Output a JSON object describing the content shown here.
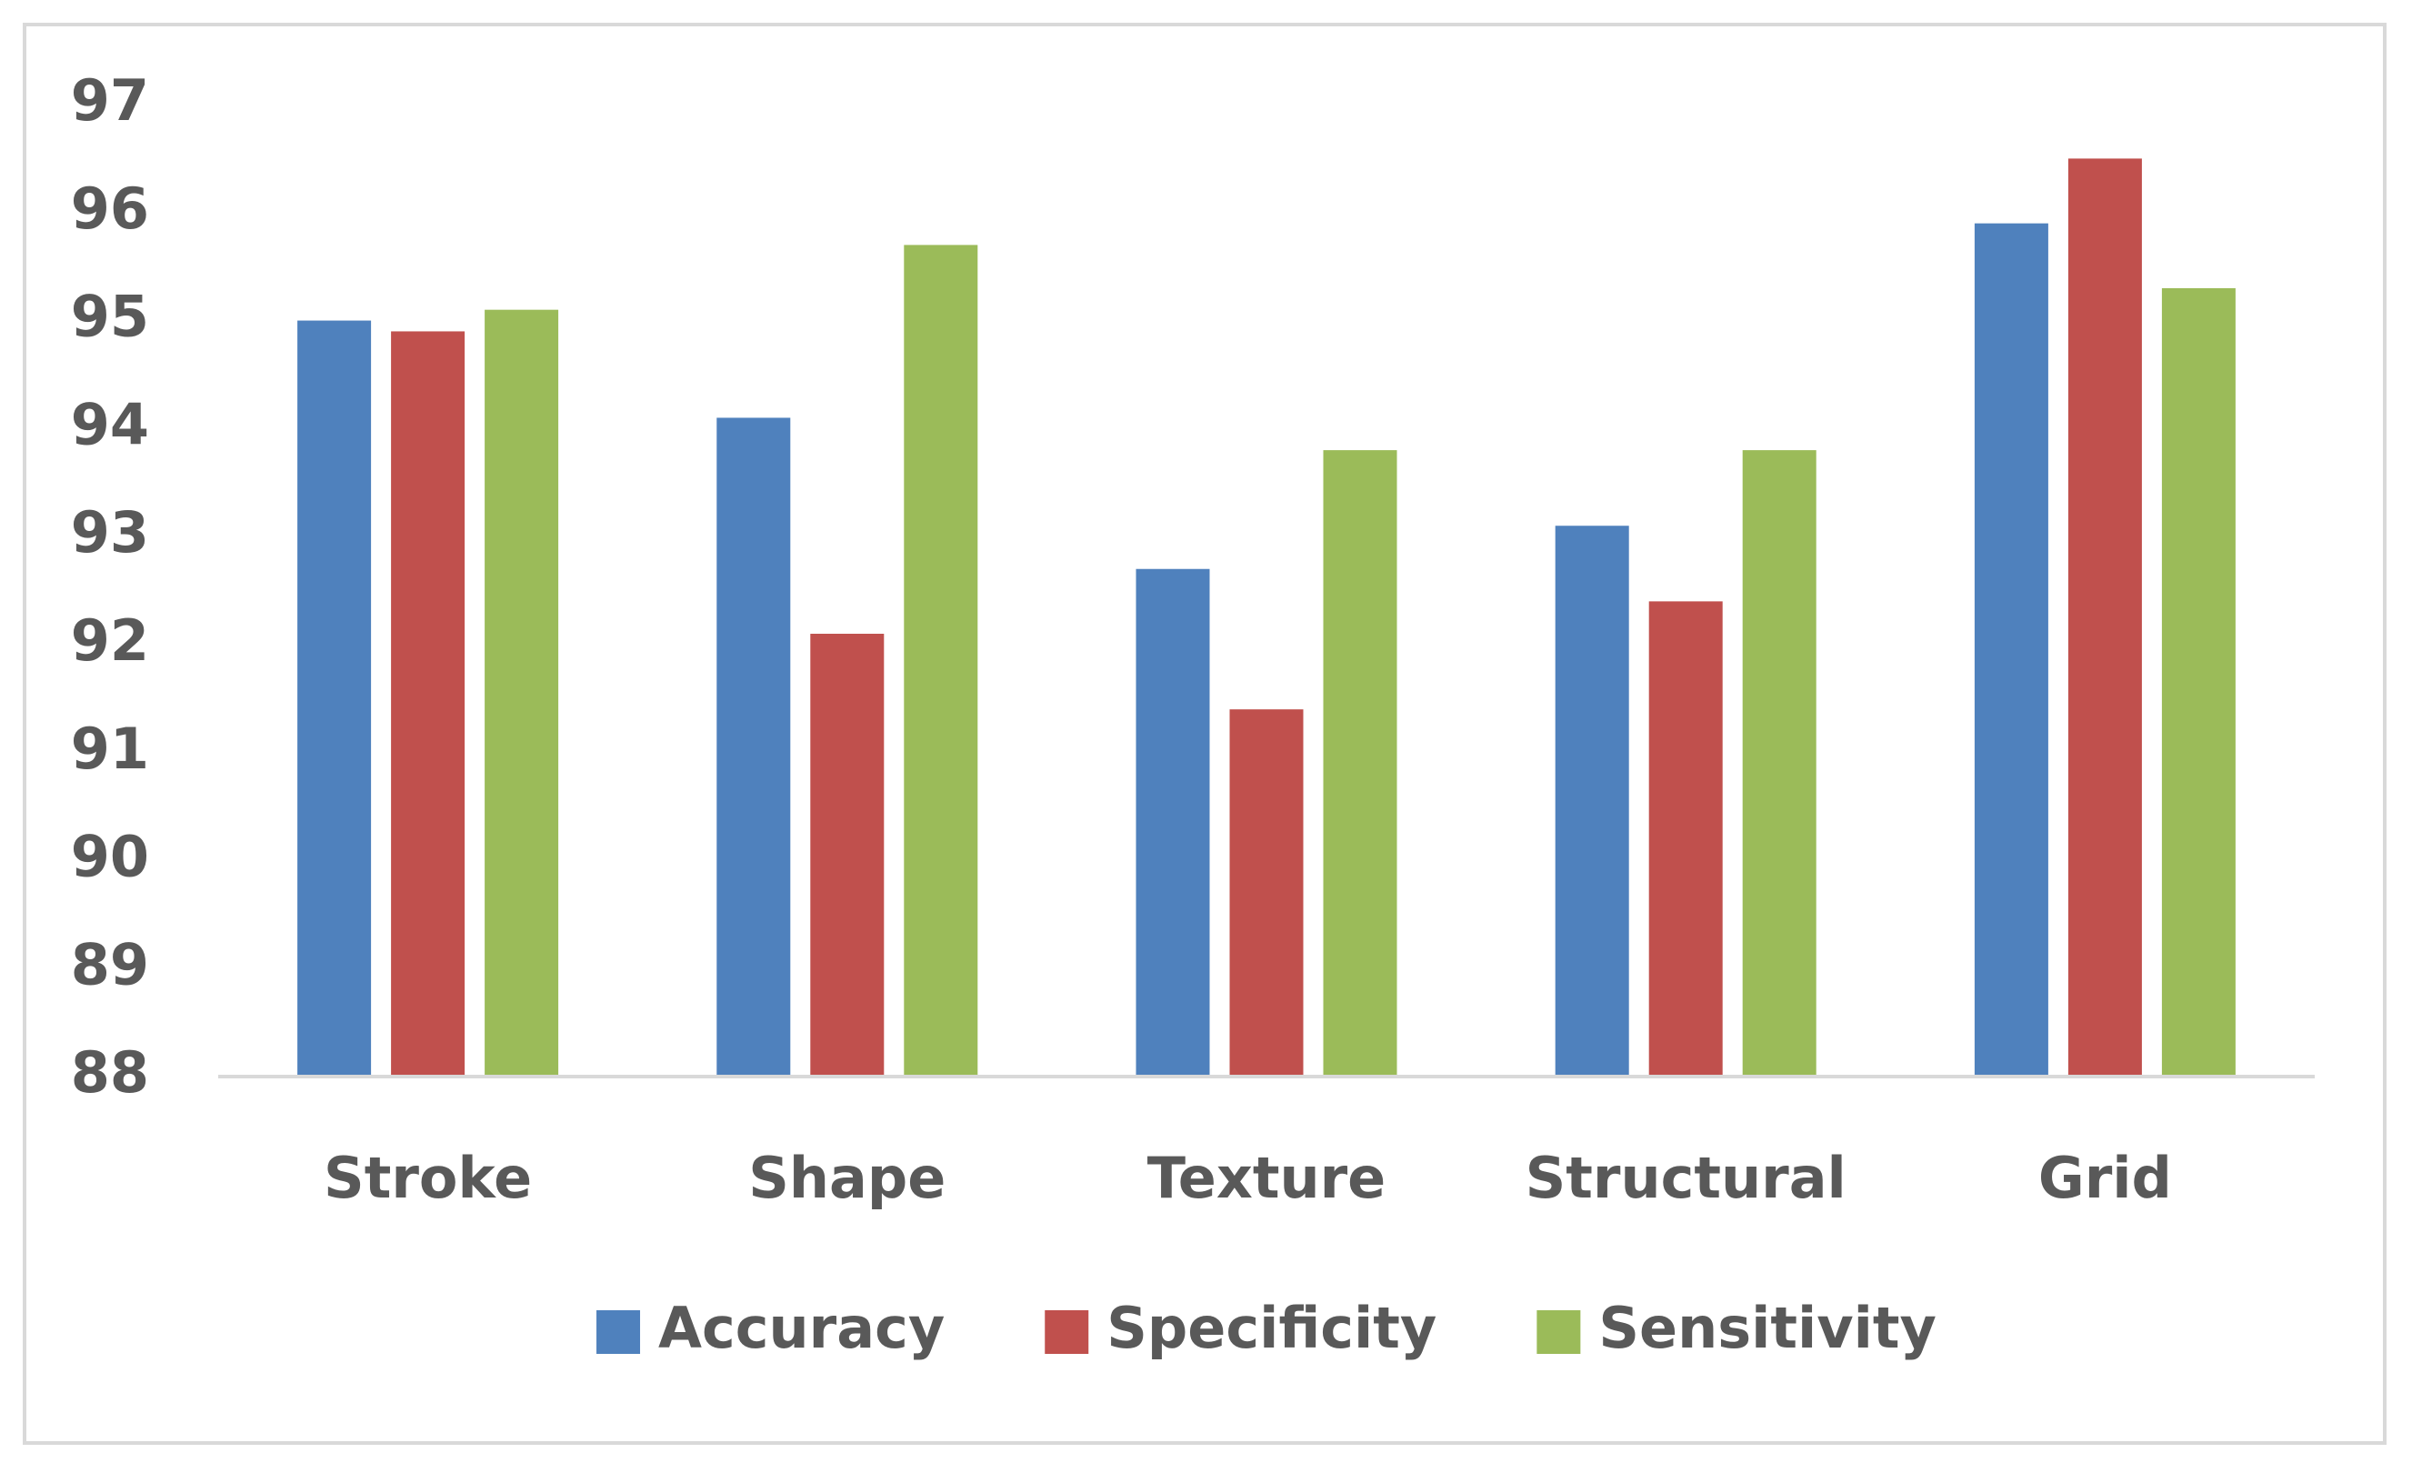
{
  "chart_data": {
    "type": "bar",
    "categories": [
      "Stroke",
      "Shape",
      "Texture",
      "Structural",
      "Grid"
    ],
    "series": [
      {
        "name": "Accuracy",
        "color": "#4f81bd",
        "values": [
          95.0,
          94.1,
          92.7,
          93.1,
          95.9
        ]
      },
      {
        "name": "Specificity",
        "color": "#c0504d",
        "values": [
          94.9,
          92.1,
          91.4,
          92.4,
          96.5
        ]
      },
      {
        "name": "Sensitivity",
        "color": "#9bbb59",
        "values": [
          95.1,
          95.7,
          93.8,
          93.8,
          95.3
        ]
      }
    ],
    "ylim": [
      88,
      97
    ],
    "yticks": [
      88,
      89,
      90,
      91,
      92,
      93,
      94,
      95,
      96,
      97
    ],
    "grid": false,
    "legend": "bottom"
  }
}
